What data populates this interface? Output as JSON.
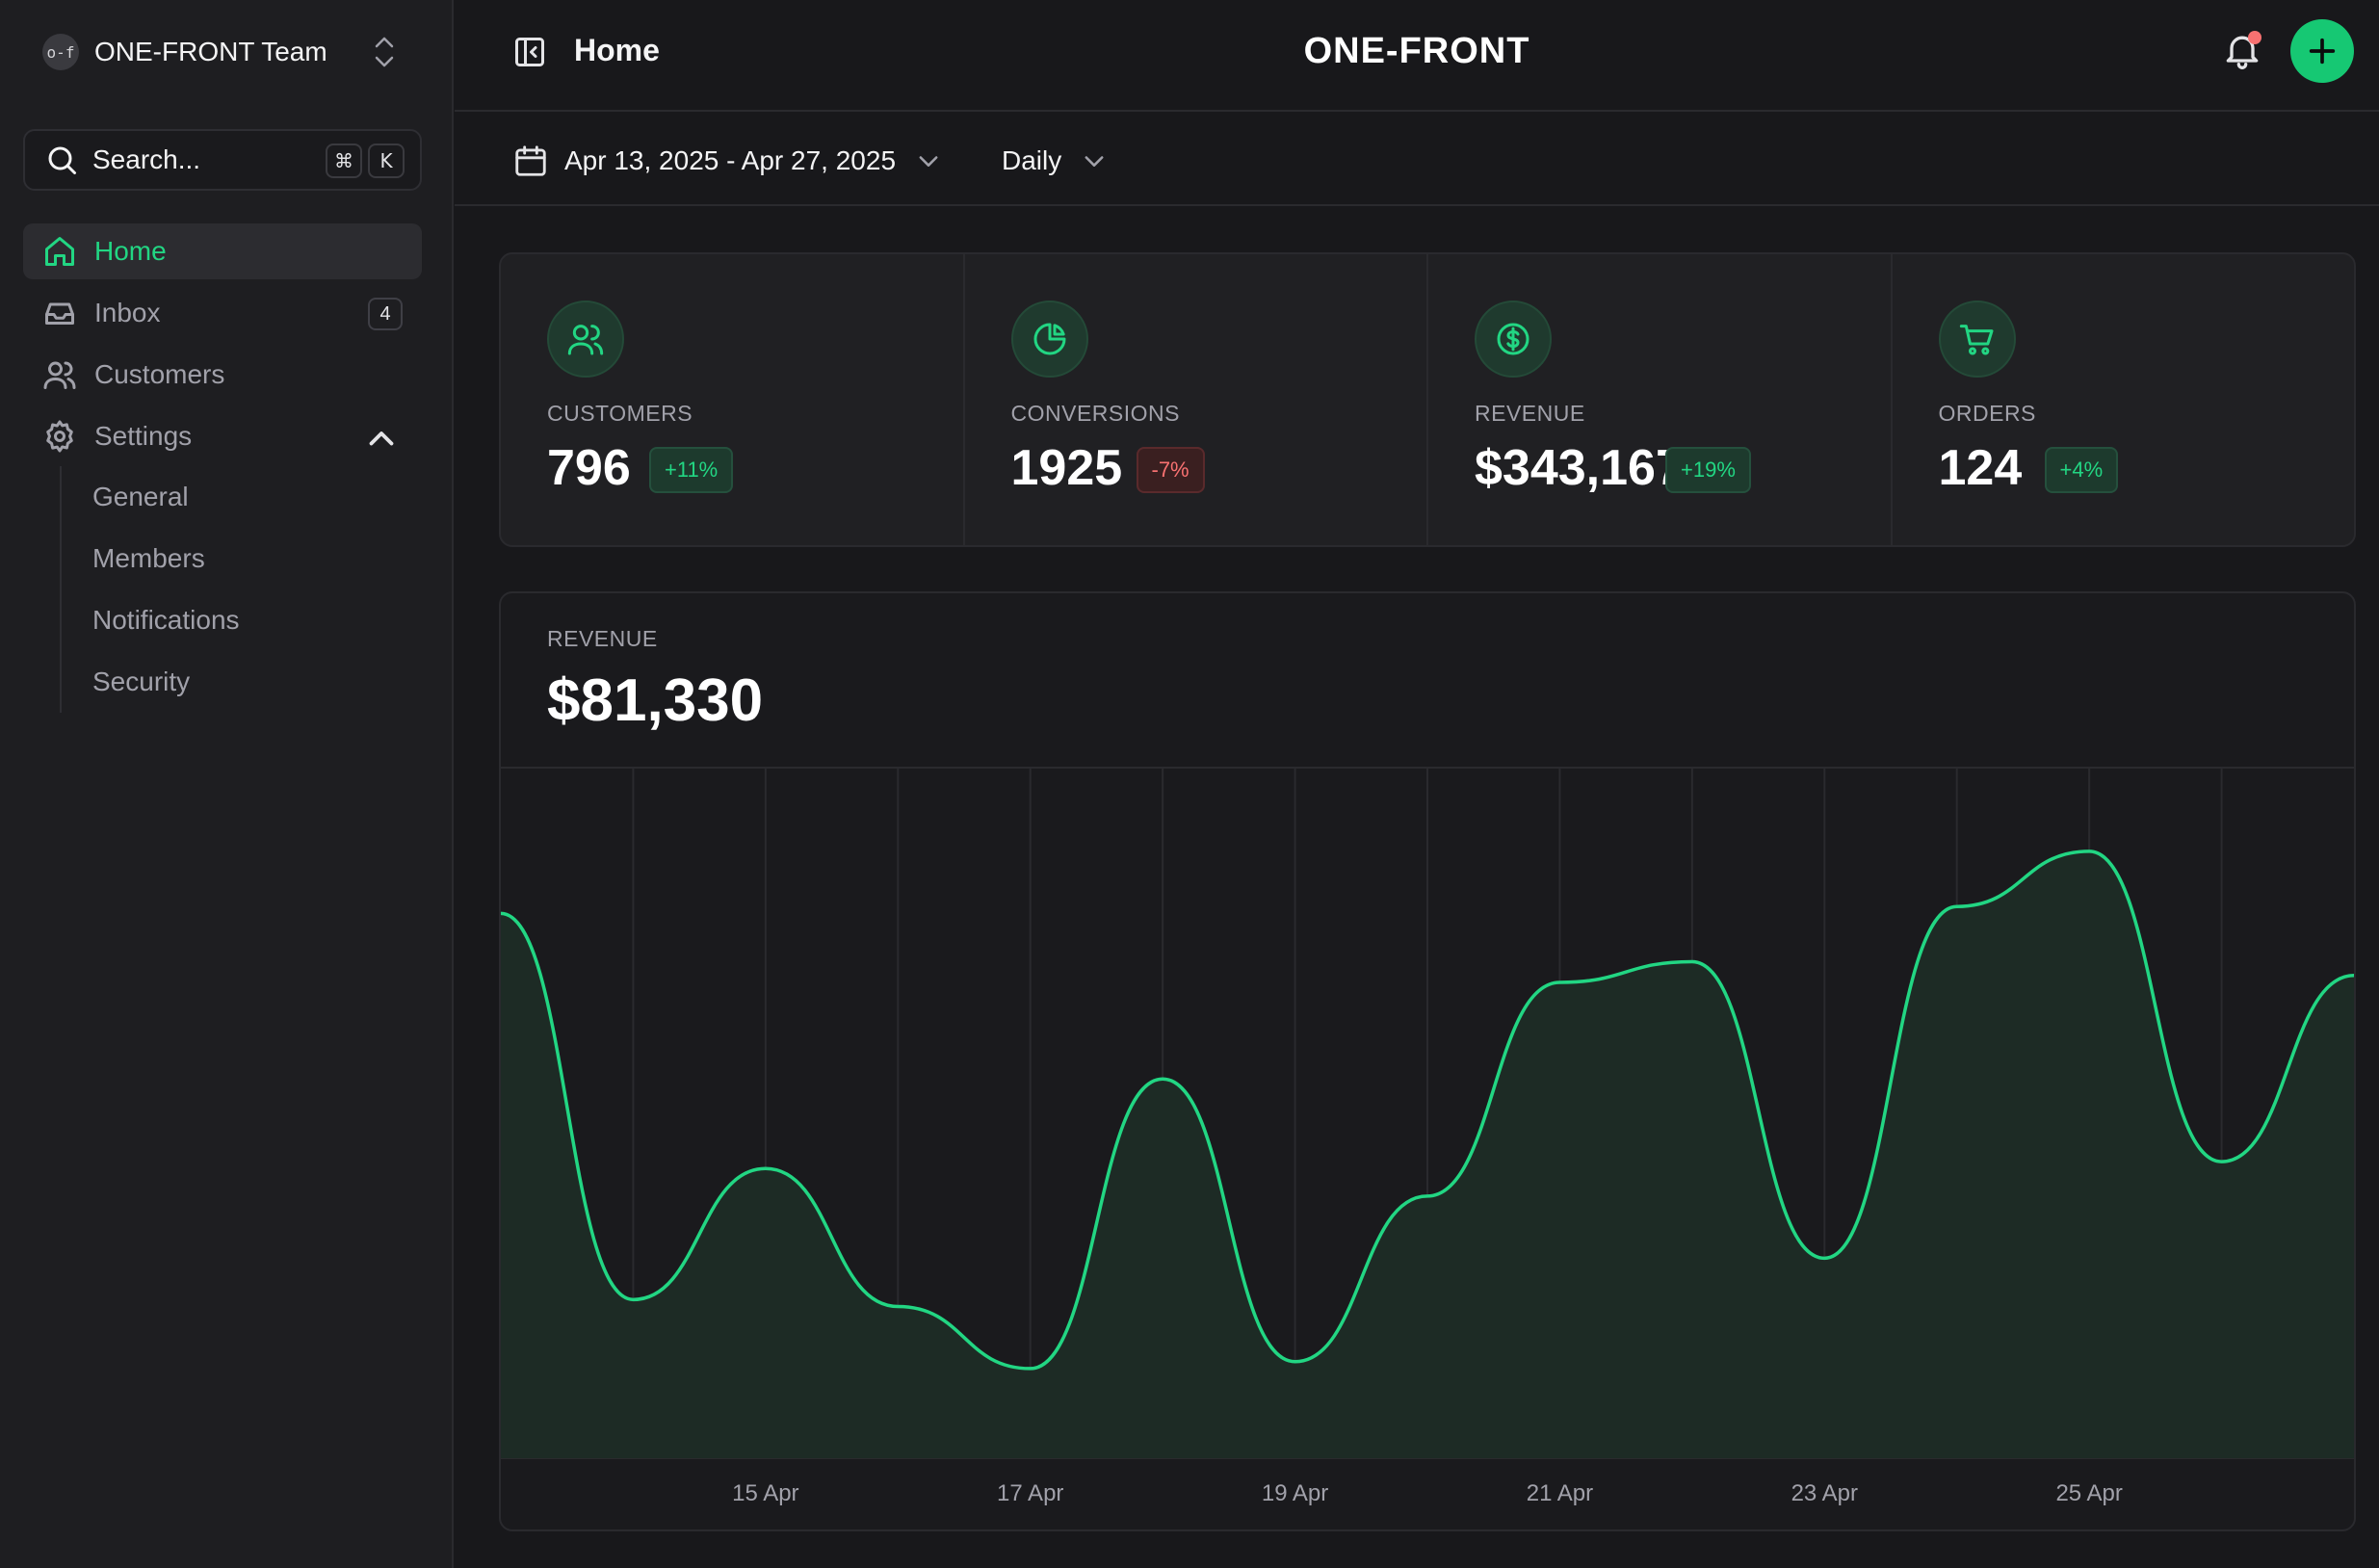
{
  "sidebar": {
    "team_logo": "o-f",
    "team_name": "ONE-FRONT Team",
    "search_label": "Search...",
    "shortcut_keys": [
      "⌘",
      "K"
    ],
    "nav": [
      {
        "label": "Home",
        "icon": "home-icon",
        "active": true
      },
      {
        "label": "Inbox",
        "icon": "inbox-icon",
        "badge": "4"
      },
      {
        "label": "Customers",
        "icon": "users-icon"
      },
      {
        "label": "Settings",
        "icon": "gear-icon",
        "expanded": true
      }
    ],
    "settings_sub": [
      "General",
      "Members",
      "Notifications",
      "Security"
    ]
  },
  "header": {
    "title": "Home",
    "brand": "ONE-FRONT"
  },
  "filters": {
    "date_range": "Apr 13, 2025 - Apr 27, 2025",
    "period": "Daily"
  },
  "stats": [
    {
      "label": "CUSTOMERS",
      "value": "796",
      "delta": "+11%",
      "trend": "up",
      "icon": "users-icon"
    },
    {
      "label": "CONVERSIONS",
      "value": "1925",
      "delta": "-7%",
      "trend": "down",
      "icon": "pie-chart-icon"
    },
    {
      "label": "REVENUE",
      "value": "$343,167",
      "delta": "+19%",
      "trend": "up",
      "icon": "dollar-circle-icon"
    },
    {
      "label": "ORDERS",
      "value": "124",
      "delta": "+4%",
      "trend": "up",
      "icon": "cart-icon"
    }
  ],
  "revenue": {
    "label": "REVENUE",
    "total": "$81,330"
  },
  "colors": {
    "accent": "#16c873",
    "line": "#22d683",
    "negative": "#f87171",
    "background": "#18181b"
  },
  "chart_data": {
    "type": "area",
    "x": [
      "13 Apr",
      "14 Apr",
      "15 Apr",
      "16 Apr",
      "17 Apr",
      "18 Apr",
      "19 Apr",
      "20 Apr",
      "21 Apr",
      "22 Apr",
      "23 Apr",
      "24 Apr",
      "25 Apr",
      "26 Apr",
      "27 Apr"
    ],
    "x_tick_labels": [
      "15 Apr",
      "17 Apr",
      "19 Apr",
      "21 Apr",
      "23 Apr",
      "25 Apr"
    ],
    "values": [
      79,
      23,
      42,
      22,
      13,
      55,
      14,
      38,
      69,
      72,
      29,
      80,
      88,
      43,
      70
    ],
    "ylim": [
      0,
      100
    ],
    "grid": "vertical",
    "title": "",
    "xlabel": "",
    "ylabel": ""
  }
}
